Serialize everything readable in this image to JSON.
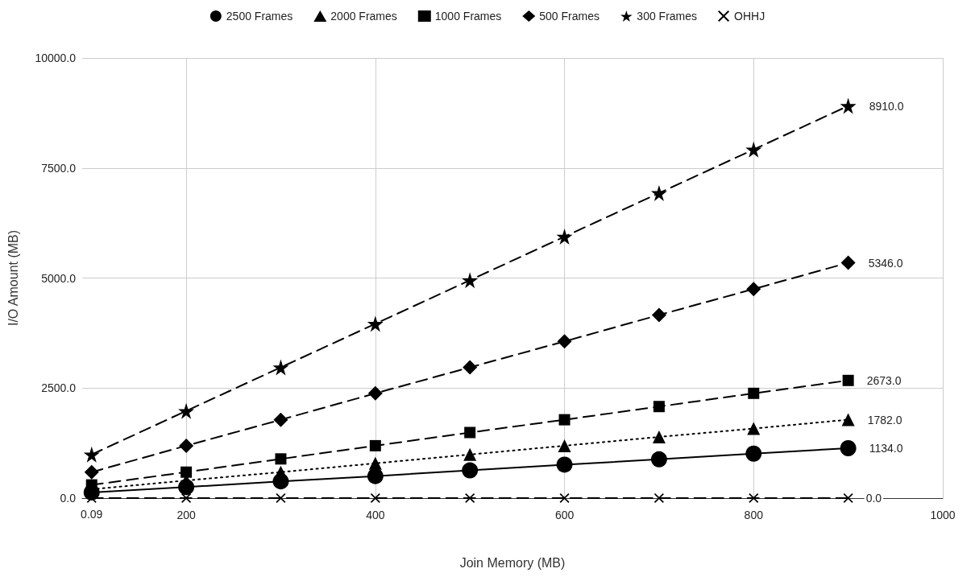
{
  "chart_data": {
    "type": "line",
    "xlabel": "Join Memory (MB)",
    "ylabel": "I/O Amount (MB)",
    "x": [
      100,
      200,
      300,
      400,
      500,
      600,
      700,
      800,
      900
    ],
    "xlim": [
      90,
      1000
    ],
    "xticks": [
      200,
      400,
      600,
      800,
      1000
    ],
    "ylim": [
      0,
      10000
    ],
    "yticks": [
      {
        "value": 0,
        "label": "0.0"
      },
      {
        "value": 2500,
        "label": "2500.0"
      },
      {
        "value": 5000,
        "label": "5000.0"
      },
      {
        "value": 7500,
        "label": "7500.0"
      },
      {
        "value": 10000,
        "label": "10000.0"
      }
    ],
    "grid": true,
    "legend": "top",
    "series": [
      {
        "name": "2500 Frames",
        "color": "#000000",
        "marker": "circle",
        "line_style": "solid",
        "values": [
          130,
          250,
          380,
          500,
          630,
          760,
          880,
          1010,
          1134
        ],
        "value_labels": [
          null,
          null,
          null,
          null,
          null,
          null,
          null,
          null,
          "1134.0"
        ]
      },
      {
        "name": "2000 Frames",
        "color": "#000000",
        "marker": "triangle",
        "line_style": "dotted",
        "values": [
          200,
          400,
          590,
          790,
          990,
          1190,
          1390,
          1580,
          1782
        ],
        "value_labels": [
          null,
          null,
          null,
          null,
          null,
          null,
          null,
          null,
          "1782.0"
        ]
      },
      {
        "name": "1000 Frames",
        "color": "#000000",
        "marker": "square",
        "line_style": "dashed",
        "values": [
          300,
          590,
          890,
          1190,
          1490,
          1780,
          2080,
          2380,
          2673
        ],
        "value_labels": [
          null,
          null,
          null,
          null,
          null,
          null,
          null,
          null,
          "2673.0"
        ]
      },
      {
        "name": "500 Frames",
        "color": "#000000",
        "marker": "diamond",
        "line_style": "dashed",
        "values": [
          590,
          1190,
          1780,
          2380,
          2970,
          3560,
          4160,
          4750,
          5346
        ],
        "value_labels": [
          null,
          null,
          null,
          null,
          null,
          null,
          null,
          null,
          "5346.0"
        ]
      },
      {
        "name": "300 Frames",
        "color": "#000000",
        "marker": "star",
        "line_style": "dashed",
        "values": [
          990,
          1980,
          2970,
          3960,
          4950,
          5940,
          6930,
          7920,
          8910
        ],
        "value_labels": [
          null,
          null,
          null,
          null,
          null,
          null,
          null,
          null,
          "8910.0"
        ]
      },
      {
        "name": "OHHJ",
        "color": "#000000",
        "marker": "cross",
        "line_style": "dashed",
        "values": [
          0.09,
          0,
          0,
          0,
          0,
          0,
          0,
          0,
          0
        ],
        "value_labels": [
          "0.09",
          null,
          null,
          null,
          null,
          null,
          null,
          null,
          "0.0"
        ]
      }
    ]
  }
}
